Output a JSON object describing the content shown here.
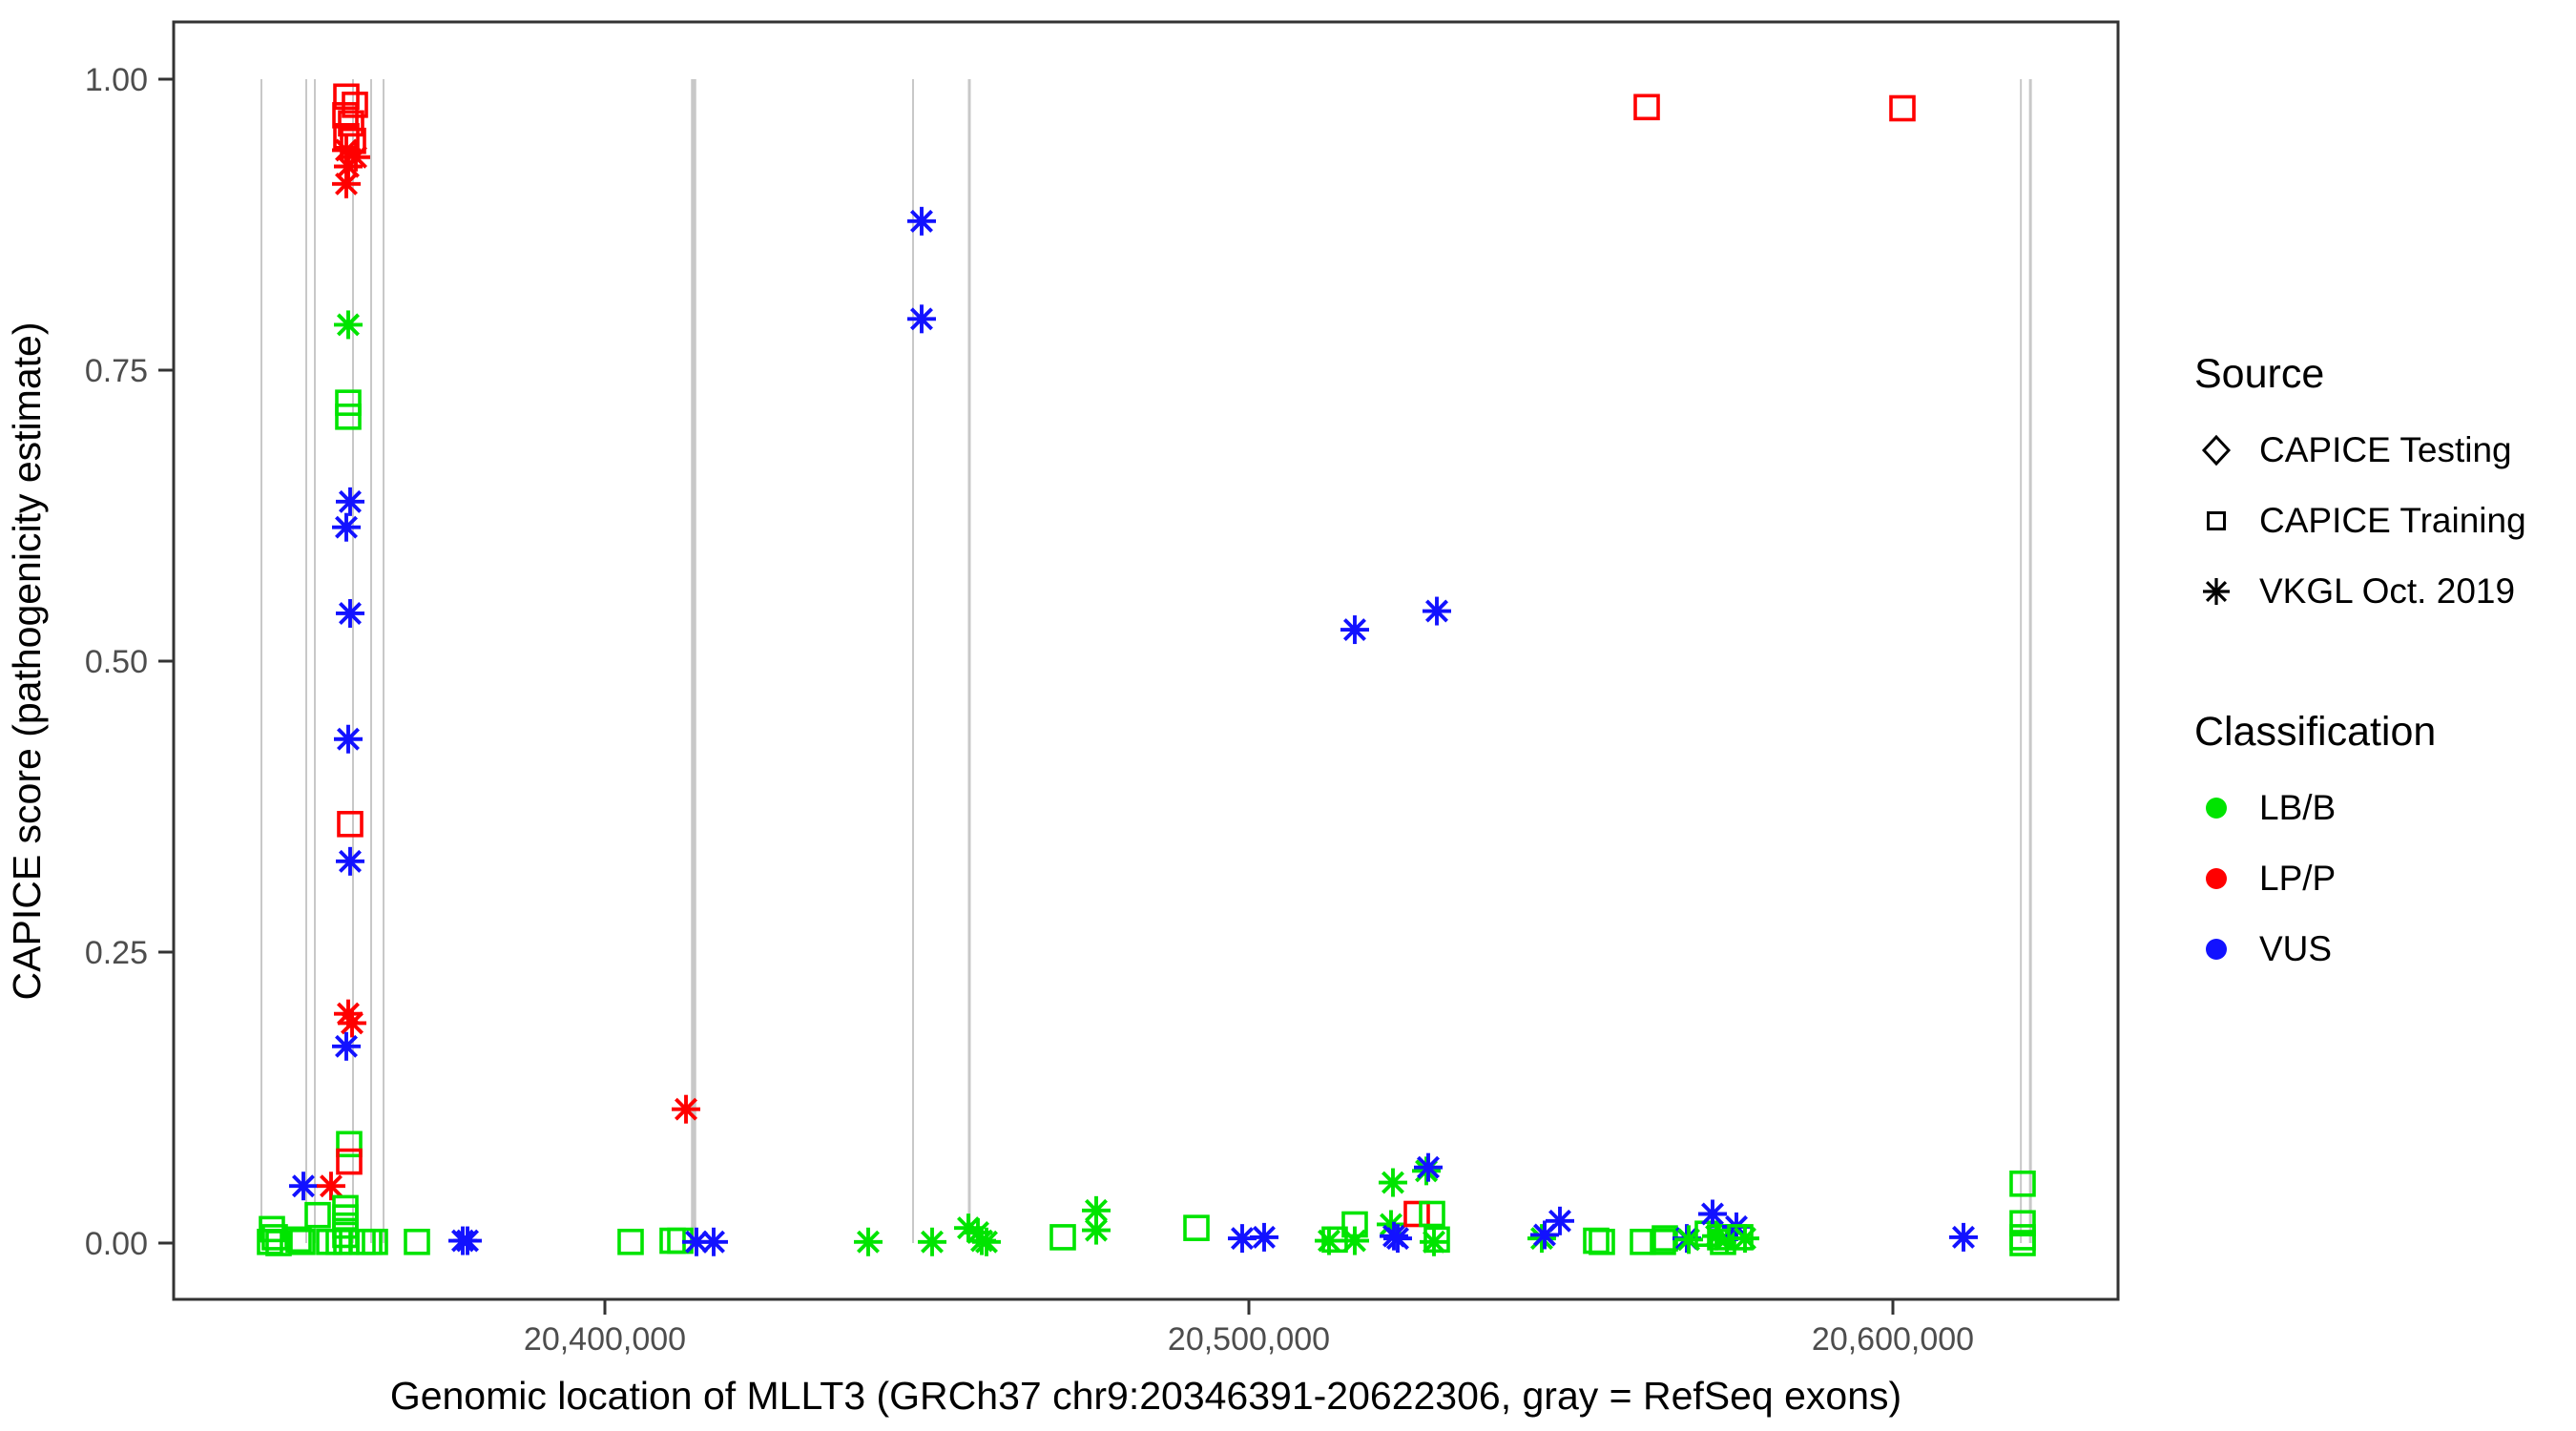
{
  "axes": {
    "x_title": "Genomic location of MLLT3 (GRCh37 chr9:20346391-20622306, gray = RefSeq exons)",
    "y_title": "CAPICE score (pathogenicity estimate)",
    "x_tick_labels": [
      "20,400,000",
      "20,500,000",
      "20,600,000"
    ],
    "y_tick_labels": [
      "0.00",
      "0.25",
      "0.50",
      "0.75",
      "1.00"
    ]
  },
  "legend": {
    "source": {
      "title": "Source",
      "items": [
        {
          "label": "CAPICE Testing",
          "marker": "diamond"
        },
        {
          "label": "CAPICE Training",
          "marker": "square"
        },
        {
          "label": "VKGL Oct. 2019",
          "marker": "asterisk"
        }
      ]
    },
    "classification": {
      "title": "Classification",
      "items": [
        {
          "label": "LB/B",
          "color": "#00E400"
        },
        {
          "label": "LP/P",
          "color": "#FF0000"
        },
        {
          "label": "VUS",
          "color": "#1212FF"
        }
      ]
    }
  },
  "chart_data": {
    "type": "scatter",
    "title": "",
    "xlabel": "Genomic location of MLLT3 (GRCh37 chr9:20346391-20622306, gray = RefSeq exons)",
    "ylabel": "CAPICE score (pathogenicity estimate)",
    "legend_position": "right",
    "grid": false,
    "x_ticks": [
      20400000,
      20500000,
      20600000
    ],
    "y_ticks": [
      0.0,
      0.25,
      0.5,
      0.75,
      1.0
    ],
    "x_domain": [
      20333037,
      20634963
    ],
    "y_domain": [
      0,
      1
    ],
    "colors": {
      "LB/B": "#00E400",
      "LP/P": "#FF0000",
      "VUS": "#1212FF",
      "exon_gray": "#C8C8C8"
    },
    "marker_by_source": {
      "CAPICE Testing": "diamond",
      "CAPICE Training": "square",
      "VKGL Oct. 2019": "asterisk"
    },
    "exons_note": "gray vertical segments spanning score 0 to 1 = RefSeq exons",
    "exons": [
      {
        "pos": 20346667,
        "w": 2
      },
      {
        "pos": 20353629,
        "w": 2
      },
      {
        "pos": 20354963,
        "w": 2
      },
      {
        "pos": 20360889,
        "w": 2
      },
      {
        "pos": 20363704,
        "w": 2
      },
      {
        "pos": 20365630,
        "w": 2
      },
      {
        "pos": 20413778,
        "w": 5.5
      },
      {
        "pos": 20447852,
        "w": 2
      },
      {
        "pos": 20456593,
        "w": 3
      },
      {
        "pos": 20619874,
        "w": 2
      },
      {
        "pos": 20621356,
        "w": 3
      }
    ],
    "point_format": [
      "genomic_location",
      "capice_score",
      "source_code(s=CAPICE Training square, a=VKGL Oct. 2019 asterisk)",
      "class_code(g=LB/B, r=LP/P, b=VUS)"
    ],
    "points": [
      [
        20348000,
        0.001,
        "s",
        "g"
      ],
      [
        20348296,
        0.012,
        "s",
        "g"
      ],
      [
        20348741,
        0.005,
        "s",
        "g"
      ],
      [
        20349333,
        0.0,
        "s",
        "g"
      ],
      [
        20352444,
        0.003,
        "s",
        "g"
      ],
      [
        20353037,
        0.001,
        "s",
        "g"
      ],
      [
        20353185,
        0.049,
        "a",
        "b"
      ],
      [
        20355407,
        0.024,
        "s",
        "g"
      ],
      [
        20357185,
        0.001,
        "s",
        "g"
      ],
      [
        20357481,
        0.049,
        "a",
        "r"
      ],
      [
        20359704,
        0.03,
        "s",
        "g"
      ],
      [
        20359704,
        0.022,
        "s",
        "g"
      ],
      [
        20359704,
        0.015,
        "s",
        "g"
      ],
      [
        20359704,
        0.007,
        "s",
        "g"
      ],
      [
        20359852,
        0.001,
        "s",
        "g"
      ],
      [
        20358667,
        0.001,
        "s",
        "g"
      ],
      [
        20362370,
        0.001,
        "s",
        "g"
      ],
      [
        20363407,
        0.001,
        "s",
        "g"
      ],
      [
        20364296,
        0.001,
        "s",
        "g"
      ],
      [
        20360296,
        0.085,
        "s",
        "g"
      ],
      [
        20360296,
        0.07,
        "s",
        "r"
      ],
      [
        20370815,
        0.001,
        "s",
        "g"
      ],
      [
        20377926,
        0.002,
        "a",
        "b"
      ],
      [
        20378667,
        0.002,
        "a",
        "b"
      ],
      [
        20359852,
        0.985,
        "s",
        "r"
      ],
      [
        20361185,
        0.978,
        "s",
        "r"
      ],
      [
        20359704,
        0.969,
        "s",
        "r"
      ],
      [
        20360593,
        0.962,
        "s",
        "r"
      ],
      [
        20359852,
        0.951,
        "s",
        "r"
      ],
      [
        20360889,
        0.947,
        "s",
        "r"
      ],
      [
        20359852,
        0.939,
        "a",
        "r"
      ],
      [
        20361333,
        0.933,
        "a",
        "r"
      ],
      [
        20360148,
        0.925,
        "a",
        "r"
      ],
      [
        20359852,
        0.91,
        "a",
        "r"
      ],
      [
        20360148,
        0.789,
        "a",
        "g"
      ],
      [
        20360148,
        0.722,
        "s",
        "g"
      ],
      [
        20360148,
        0.71,
        "s",
        "g"
      ],
      [
        20360444,
        0.637,
        "a",
        "b"
      ],
      [
        20359852,
        0.615,
        "a",
        "b"
      ],
      [
        20360444,
        0.541,
        "a",
        "b"
      ],
      [
        20360148,
        0.433,
        "a",
        "b"
      ],
      [
        20360444,
        0.36,
        "s",
        "r"
      ],
      [
        20360444,
        0.328,
        "a",
        "b"
      ],
      [
        20360148,
        0.197,
        "a",
        "r"
      ],
      [
        20360741,
        0.189,
        "a",
        "r"
      ],
      [
        20359852,
        0.169,
        "a",
        "b"
      ],
      [
        20412593,
        0.115,
        "a",
        "r"
      ],
      [
        20404000,
        0.001,
        "s",
        "g"
      ],
      [
        20410519,
        0.002,
        "s",
        "g"
      ],
      [
        20411704,
        0.002,
        "s",
        "g"
      ],
      [
        20414222,
        0.001,
        "a",
        "b"
      ],
      [
        20416889,
        0.001,
        "a",
        "b"
      ],
      [
        20440889,
        0.001,
        "a",
        "g"
      ],
      [
        20449185,
        0.878,
        "a",
        "b"
      ],
      [
        20449185,
        0.794,
        "a",
        "b"
      ],
      [
        20450815,
        0.001,
        "a",
        "g"
      ],
      [
        20456444,
        0.013,
        "a",
        "g"
      ],
      [
        20457926,
        0.009,
        "a",
        "g"
      ],
      [
        20458519,
        0.002,
        "a",
        "g"
      ],
      [
        20459259,
        0.001,
        "a",
        "g"
      ],
      [
        20471111,
        0.005,
        "s",
        "g"
      ],
      [
        20476296,
        0.028,
        "a",
        "g"
      ],
      [
        20476296,
        0.011,
        "a",
        "g"
      ],
      [
        20491852,
        0.013,
        "s",
        "g"
      ],
      [
        20498963,
        0.004,
        "a",
        "b"
      ],
      [
        20502370,
        0.005,
        "a",
        "b"
      ],
      [
        20512444,
        0.002,
        "a",
        "g"
      ],
      [
        20513333,
        0.003,
        "s",
        "g"
      ],
      [
        20516444,
        0.527,
        "a",
        "b"
      ],
      [
        20516444,
        0.016,
        "s",
        "g"
      ],
      [
        20516444,
        0.002,
        "a",
        "g"
      ],
      [
        20522074,
        0.016,
        "a",
        "g"
      ],
      [
        20522370,
        0.052,
        "a",
        "g"
      ],
      [
        20522519,
        0.006,
        "a",
        "b"
      ],
      [
        20523111,
        0.004,
        "a",
        "b"
      ],
      [
        20526074,
        0.025,
        "s",
        "r"
      ],
      [
        20527556,
        0.062,
        "a",
        "g"
      ],
      [
        20527852,
        0.065,
        "a",
        "b"
      ],
      [
        20528444,
        0.025,
        "s",
        "g"
      ],
      [
        20529185,
        0.543,
        "a",
        "b"
      ],
      [
        20529185,
        0.003,
        "s",
        "g"
      ],
      [
        20528741,
        0.001,
        "a",
        "g"
      ],
      [
        20545481,
        0.004,
        "a",
        "g"
      ],
      [
        20545926,
        0.007,
        "a",
        "b"
      ],
      [
        20548296,
        0.019,
        "a",
        "b"
      ],
      [
        20553926,
        0.002,
        "s",
        "g"
      ],
      [
        20554815,
        0.001,
        "s",
        "g"
      ],
      [
        20561185,
        0.001,
        "s",
        "g"
      ],
      [
        20561778,
        0.976,
        "s",
        "r"
      ],
      [
        20564296,
        0.001,
        "s",
        "g"
      ],
      [
        20564593,
        0.004,
        "s",
        "g"
      ],
      [
        20568000,
        0.004,
        "a",
        "b"
      ],
      [
        20568300,
        0.003,
        "a",
        "g"
      ],
      [
        20571259,
        0.008,
        "s",
        "g"
      ],
      [
        20572000,
        0.025,
        "a",
        "b"
      ],
      [
        20572593,
        0.006,
        "a",
        "g"
      ],
      [
        20573185,
        0.005,
        "s",
        "g"
      ],
      [
        20573630,
        0.001,
        "s",
        "g"
      ],
      [
        20574222,
        0.004,
        "a",
        "g"
      ],
      [
        20575704,
        0.014,
        "a",
        "b"
      ],
      [
        20576296,
        0.005,
        "s",
        "g"
      ],
      [
        20577037,
        0.004,
        "a",
        "g"
      ],
      [
        20601481,
        0.975,
        "s",
        "r"
      ],
      [
        20610963,
        0.005,
        "a",
        "b"
      ],
      [
        20620148,
        0.051,
        "s",
        "g"
      ],
      [
        20620148,
        0.017,
        "s",
        "g"
      ],
      [
        20620148,
        0.005,
        "s",
        "g"
      ],
      [
        20620148,
        0.0,
        "s",
        "g"
      ]
    ]
  }
}
